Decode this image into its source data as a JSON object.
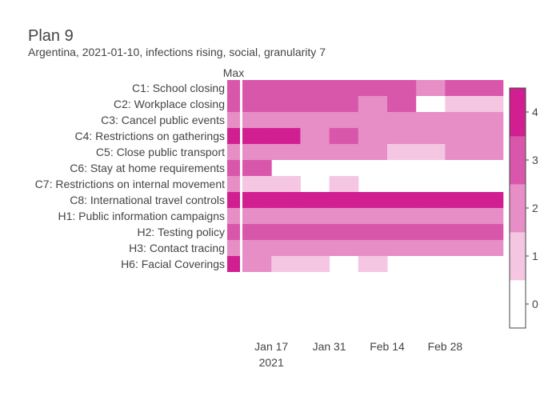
{
  "chart_data": {
    "type": "heatmap",
    "title": "Plan 9",
    "subtitle": "Argentina, 2021-01-10, infections rising, social, granularity 7",
    "max_column_label": "Max",
    "x_start": "2021-01-10",
    "x_step_days": 7,
    "x_ticks": [
      {
        "date": "2021-01-17",
        "label": "Jan 17",
        "sublabel": "2021"
      },
      {
        "date": "2021-01-31",
        "label": "Jan 31",
        "sublabel": ""
      },
      {
        "date": "2021-02-14",
        "label": "Feb 14",
        "sublabel": ""
      },
      {
        "date": "2021-02-28",
        "label": "Feb 28",
        "sublabel": ""
      }
    ],
    "colorbar": {
      "ticks": [
        "0",
        "1",
        "2",
        "3",
        "4"
      ],
      "range": [
        0,
        4
      ]
    },
    "colors": [
      "#ffffff",
      "#f4c6e2",
      "#e78ec6",
      "#d957ab",
      "#d11f92"
    ],
    "rows": [
      {
        "label": "C1: School closing",
        "max": 3,
        "values": [
          3,
          3,
          3,
          3,
          3,
          3,
          2,
          3,
          3
        ]
      },
      {
        "label": "C2: Workplace closing",
        "max": 3,
        "values": [
          3,
          3,
          3,
          3,
          2,
          3,
          0,
          1,
          1
        ]
      },
      {
        "label": "C3: Cancel public events",
        "max": 2,
        "values": [
          2,
          2,
          2,
          2,
          2,
          2,
          2,
          2,
          2
        ]
      },
      {
        "label": "C4: Restrictions on gatherings",
        "max": 4,
        "values": [
          4,
          4,
          2,
          3,
          2,
          2,
          2,
          2,
          2
        ]
      },
      {
        "label": "C5: Close public transport",
        "max": 2,
        "values": [
          2,
          2,
          2,
          2,
          2,
          1,
          1,
          2,
          2
        ]
      },
      {
        "label": "C6: Stay at home requirements",
        "max": 3,
        "values": [
          3,
          null,
          null,
          null,
          null,
          null,
          null,
          null,
          null
        ]
      },
      {
        "label": "C7: Restrictions on internal movement",
        "max": 2,
        "values": [
          1,
          1,
          null,
          1,
          null,
          null,
          null,
          null,
          null
        ]
      },
      {
        "label": "C8: International travel controls",
        "max": 4,
        "values": [
          4,
          4,
          4,
          4,
          4,
          4,
          4,
          4,
          4
        ]
      },
      {
        "label": "H1: Public information campaigns",
        "max": 2,
        "values": [
          2,
          2,
          2,
          2,
          2,
          2,
          2,
          2,
          2
        ]
      },
      {
        "label": "H2: Testing policy",
        "max": 3,
        "values": [
          3,
          3,
          3,
          3,
          3,
          3,
          3,
          3,
          3
        ]
      },
      {
        "label": "H3: Contact tracing",
        "max": 2,
        "values": [
          2,
          2,
          2,
          2,
          2,
          2,
          2,
          2,
          2
        ]
      },
      {
        "label": "H6: Facial Coverings",
        "max": 4,
        "values": [
          2,
          1,
          1,
          null,
          1,
          null,
          null,
          null,
          null
        ]
      }
    ]
  }
}
